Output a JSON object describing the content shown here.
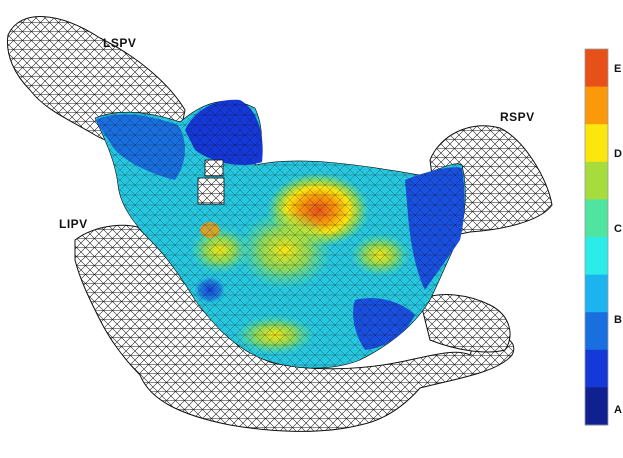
{
  "anatomy_labels": {
    "lspv": "LSPV",
    "rspv": "RSPV",
    "lipv": "LIPV"
  },
  "colorbar": {
    "ticks": [
      "E",
      "D",
      "C",
      "B",
      "A"
    ],
    "colors": [
      "#e8501a",
      "#fa9a0a",
      "#fbe60e",
      "#a6dd3c",
      "#4fe4a0",
      "#2cecea",
      "#1cb4ee",
      "#1a6fe0",
      "#1538d8",
      "#10208f"
    ]
  },
  "mesh_colors": {
    "wire": "#111111",
    "low": "#1334c8",
    "mid": "#27c7e0",
    "high": "#f07a18"
  }
}
